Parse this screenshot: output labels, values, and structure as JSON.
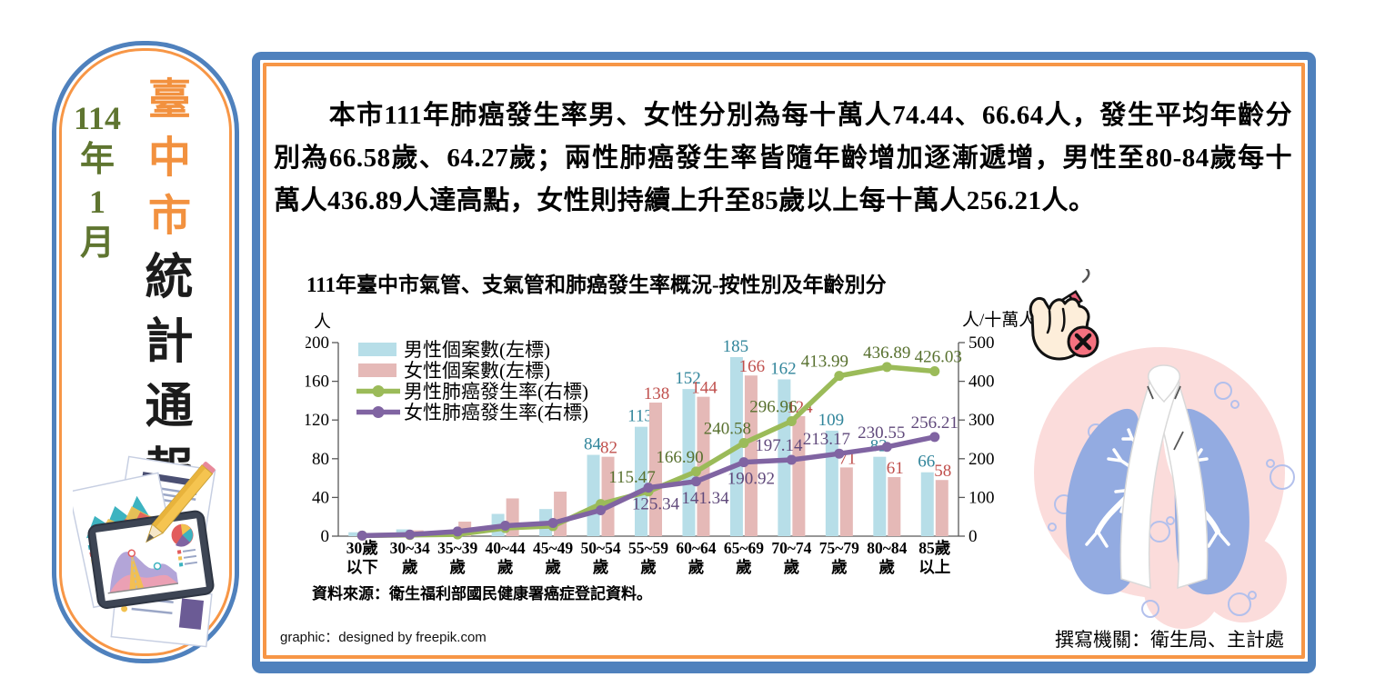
{
  "sidebar": {
    "date": [
      "114",
      "年",
      "1",
      "月"
    ],
    "title_city": "臺中市",
    "title_bulletin": "統計通報"
  },
  "main": {
    "paragraph": "　　本市111年肺癌發生率男、女性分別為每十萬人74.44、66.64人，發生平均年齡分別為66.58歲、64.27歲；兩性肺癌發生率皆隨年齡增加逐漸遞增，男性至80-84歲每十萬人436.89人達高點，女性則持續上升至85歲以上每十萬人256.21人。",
    "source_note": "資料來源：衛生福利部國民健康署癌症登記資料。",
    "credit_left": "graphic：designed by freepik.com",
    "credit_right": "撰寫機關：衛生局、主計處"
  },
  "icons": {
    "hand": "no-smoking-hand-icon",
    "lungs": "lungs-ribbon-illustration",
    "docs": "charts-documents-illustration"
  },
  "colors": {
    "panel_blue": "#4f81bd",
    "frame_orange": "#f79646",
    "male_bar": "#b7dee8",
    "female_bar": "#e5b9b7",
    "male_line": "#9bbb59",
    "female_line": "#8064a2"
  },
  "chart_data": {
    "type": "bar+line",
    "title": "111年臺中市氣管、支氣管和肺癌發生率概況-按性別及年齡別分",
    "left_axis": {
      "label": "人",
      "min": 0,
      "max": 200,
      "step": 40
    },
    "right_axis": {
      "label": "人/十萬人",
      "min": 0,
      "max": 500,
      "step": 100
    },
    "legend_position": "top-left-inside",
    "grid": false,
    "categories": [
      [
        "30歲",
        "以下"
      ],
      [
        "30~34",
        "歲"
      ],
      [
        "35~39",
        "歲"
      ],
      [
        "40~44",
        "歲"
      ],
      [
        "45~49",
        "歲"
      ],
      [
        "50~54",
        "歲"
      ],
      [
        "55~59",
        "歲"
      ],
      [
        "60~64",
        "歲"
      ],
      [
        "65~69",
        "歲"
      ],
      [
        "70~74",
        "歲"
      ],
      [
        "75~79",
        "歲"
      ],
      [
        "80~84",
        "歲"
      ],
      [
        "85歲",
        "以上"
      ]
    ],
    "series": [
      {
        "name": "男性個案數(左標)",
        "type": "bar",
        "axis": "left",
        "color": "#b7dee8",
        "label_color": "#31859b",
        "values": [
          4,
          7,
          5,
          23,
          28,
          84,
          113,
          152,
          185,
          162,
          109,
          82,
          66
        ],
        "labels": [
          null,
          null,
          null,
          null,
          null,
          "84",
          "113",
          "152",
          "185",
          "162",
          "109",
          "82",
          "66"
        ]
      },
      {
        "name": "女性個案數(左標)",
        "type": "bar",
        "axis": "left",
        "color": "#e5b9b7",
        "label_color": "#c0504d",
        "values": [
          1,
          6,
          15,
          39,
          46,
          82,
          138,
          144,
          166,
          124,
          71,
          61,
          58
        ],
        "labels": [
          null,
          null,
          null,
          null,
          null,
          "82",
          "138",
          "144",
          "166",
          "124",
          "71",
          "61",
          "58"
        ]
      },
      {
        "name": "男性肺癌發生率(右標)",
        "type": "line",
        "axis": "right",
        "color": "#9bbb59",
        "label_color": "#57702e",
        "values": [
          1.5,
          3,
          4.5,
          21,
          26,
          83,
          115.47,
          166.9,
          240.58,
          296.96,
          413.99,
          436.89,
          426.03
        ],
        "labels": [
          null,
          null,
          null,
          null,
          null,
          null,
          "115.47",
          "166.90",
          "240.58",
          "296.96",
          "413.99",
          "436.89",
          "426.03"
        ],
        "label_below": [],
        "label_dx": [
          0,
          0,
          0,
          0,
          0,
          0,
          -18,
          -18,
          -18,
          -20,
          -16,
          0,
          4
        ]
      },
      {
        "name": "女性肺癌發生率(右標)",
        "type": "line",
        "axis": "right",
        "color": "#8064a2",
        "label_color": "#60497b",
        "values": [
          1.5,
          4,
          12,
          27,
          34,
          67,
          125.34,
          141.34,
          190.92,
          197.14,
          213.17,
          230.55,
          256.21
        ],
        "labels": [
          null,
          null,
          null,
          null,
          null,
          null,
          "125.34",
          "141.34",
          "190.92",
          "197.14",
          "213.17",
          "230.55",
          "256.21"
        ],
        "label_below": [
          6,
          7,
          8
        ],
        "label_dx": [
          0,
          0,
          0,
          0,
          0,
          0,
          8,
          10,
          8,
          -14,
          -14,
          -6,
          0
        ]
      }
    ]
  }
}
